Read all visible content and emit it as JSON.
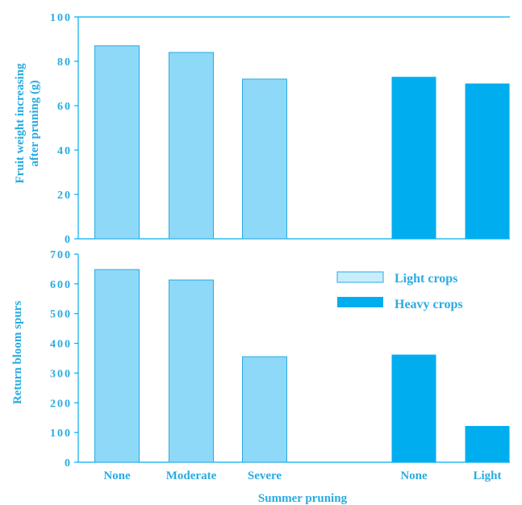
{
  "chart_data": [
    {
      "type": "bar",
      "categories": [
        "None",
        "Moderate",
        "Severe",
        "None",
        "Light"
      ],
      "series": [
        {
          "name": "Light crops",
          "values": [
            87,
            84,
            72,
            null,
            null
          ]
        },
        {
          "name": "Heavy crops",
          "values": [
            null,
            null,
            null,
            73,
            70
          ]
        }
      ],
      "ylabel_lines": [
        "Fruit weight increasing",
        "after pruning (g)"
      ],
      "ylim": [
        0,
        100
      ],
      "yticks": [
        "100",
        "80",
        "60",
        "40",
        "20",
        "0"
      ],
      "ytick_values": [
        100,
        80,
        60,
        40,
        20,
        0
      ]
    },
    {
      "type": "bar",
      "categories": [
        "None",
        "Moderate",
        "Severe",
        "None",
        "Light"
      ],
      "series": [
        {
          "name": "Light crops",
          "values": [
            648,
            613,
            355,
            null,
            null
          ]
        },
        {
          "name": "Heavy crops",
          "values": [
            null,
            null,
            null,
            362,
            122
          ]
        }
      ],
      "ylabel": "Return bloom spurs",
      "xlabel": "Summer pruning",
      "ylim": [
        0,
        700
      ],
      "yticks": [
        "700",
        "600",
        "500",
        "400",
        "300",
        "200",
        "100",
        "0"
      ],
      "ytick_values": [
        700,
        600,
        500,
        400,
        300,
        200,
        100,
        0
      ]
    }
  ],
  "legend": {
    "placement": "top-right of lower panel",
    "items": [
      {
        "label": "Light crops",
        "color": "#8ed8f8"
      },
      {
        "label": "Heavy crops",
        "color": "#00aeef"
      }
    ]
  },
  "colors": {
    "axis": "#00aeef",
    "text": "#29abe2",
    "light_fill": "#8ed8f8",
    "light_stroke": "#29abe2",
    "heavy_fill": "#00aeef",
    "legend_light_fill": "#c8eefc"
  }
}
